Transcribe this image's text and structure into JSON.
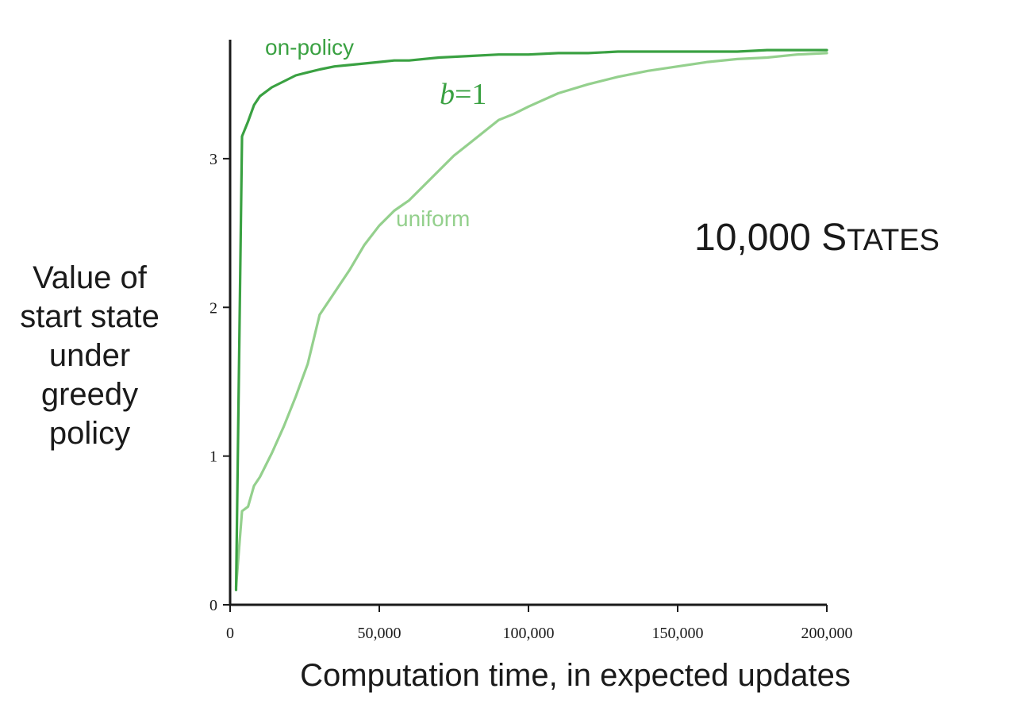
{
  "chart_data": {
    "type": "line",
    "annotation": {
      "lead": "10,000 S",
      "smallcaps": "TATES"
    },
    "param_label": {
      "italic": "b",
      "rest": "=1"
    },
    "xlabel": "Computation time, in expected updates",
    "ylabel_lines": [
      "Value of",
      "start state",
      "under",
      "greedy",
      "policy"
    ],
    "xlim": [
      0,
      200000
    ],
    "ylim": [
      0,
      3.8
    ],
    "x_ticks": [
      0,
      50000,
      100000,
      150000,
      200000
    ],
    "x_tick_labels": [
      "0",
      "50,000",
      "100,000",
      "150,000",
      "200,000"
    ],
    "y_ticks": [
      0,
      1,
      2,
      3
    ],
    "y_tick_labels": [
      "0",
      "1",
      "2",
      "3"
    ],
    "grid": false,
    "series": [
      {
        "name": "on-policy",
        "color": "#3aa142",
        "x": [
          2000,
          4000,
          6000,
          8000,
          10000,
          14000,
          18000,
          22000,
          26000,
          30000,
          35000,
          40000,
          45000,
          50000,
          55000,
          60000,
          70000,
          80000,
          90000,
          100000,
          110000,
          120000,
          130000,
          140000,
          150000,
          160000,
          170000,
          180000,
          190000,
          200000
        ],
        "values": [
          0.1,
          3.15,
          3.25,
          3.36,
          3.42,
          3.48,
          3.52,
          3.56,
          3.58,
          3.6,
          3.62,
          3.63,
          3.64,
          3.65,
          3.66,
          3.66,
          3.68,
          3.69,
          3.7,
          3.7,
          3.71,
          3.71,
          3.72,
          3.72,
          3.72,
          3.72,
          3.72,
          3.73,
          3.73,
          3.73
        ]
      },
      {
        "name": "uniform",
        "color": "#94d08d",
        "x": [
          2000,
          4000,
          6000,
          8000,
          10000,
          14000,
          18000,
          22000,
          26000,
          30000,
          35000,
          40000,
          45000,
          50000,
          55000,
          60000,
          65000,
          70000,
          75000,
          80000,
          85000,
          90000,
          95000,
          100000,
          110000,
          120000,
          130000,
          140000,
          150000,
          160000,
          170000,
          180000,
          190000,
          200000
        ],
        "values": [
          0.12,
          0.63,
          0.66,
          0.8,
          0.86,
          1.02,
          1.2,
          1.4,
          1.62,
          1.95,
          2.1,
          2.25,
          2.42,
          2.55,
          2.65,
          2.72,
          2.82,
          2.92,
          3.02,
          3.1,
          3.18,
          3.26,
          3.3,
          3.35,
          3.44,
          3.5,
          3.55,
          3.59,
          3.62,
          3.65,
          3.67,
          3.68,
          3.7,
          3.71
        ]
      }
    ]
  }
}
